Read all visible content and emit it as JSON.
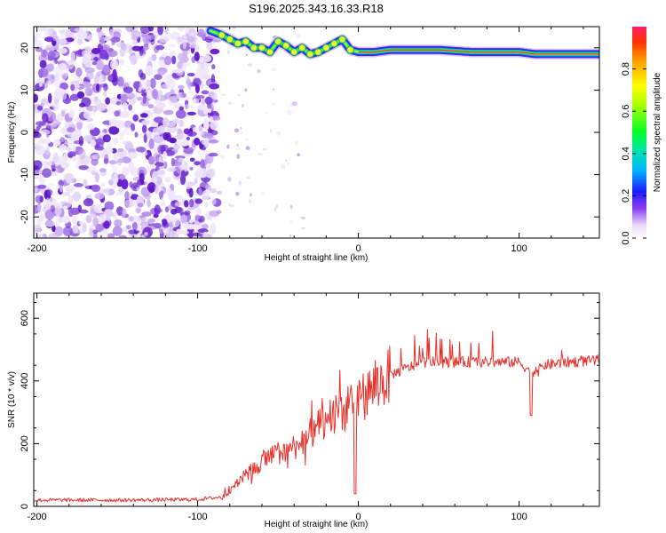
{
  "title": "S196.2025.343.16.33.R18",
  "colors": {
    "snr_line": "#e8302a",
    "ridge_core": "#e8302a",
    "noise_dark": "#6a1fd0",
    "noise_light": "#d9c4f4",
    "frame": "#000000",
    "background": "#ffffff"
  },
  "chart_data": [
    {
      "type": "heatmap",
      "name": "spectrogram",
      "title": "S196.2025.343.16.33.R18",
      "xlabel": "Height of straight line (km)",
      "ylabel": "Frequency (Hz)",
      "xlim": [
        -202,
        150
      ],
      "ylim": [
        -25,
        25
      ],
      "xticks": [
        -200,
        -100,
        0,
        100
      ],
      "yticks": [
        20,
        10,
        0,
        -10,
        -20
      ],
      "ridge": {
        "description_points_x": [
          -92,
          -85,
          -80,
          -75,
          -70,
          -65,
          -60,
          -55,
          -50,
          -45,
          -40,
          -35,
          -30,
          -25,
          -20,
          -15,
          -10,
          -5,
          0,
          10,
          20,
          30,
          50,
          70,
          90,
          100,
          110,
          120,
          130,
          150
        ],
        "description_points_y": [
          24,
          23,
          22,
          21,
          21.5,
          20,
          20,
          19,
          21.5,
          20.5,
          19,
          20,
          18.5,
          19,
          20,
          21,
          22,
          19.5,
          19,
          19,
          19.5,
          19.5,
          19.5,
          19,
          19,
          19,
          18.5,
          18.5,
          18.5,
          18.5
        ]
      },
      "noise_region_x": [
        -202,
        -88
      ],
      "colorbar": {
        "label": "Normalized spectral amplitude",
        "range": [
          0.0,
          1.0
        ],
        "ticks": [
          0.0,
          0.2,
          0.4,
          0.6,
          0.8
        ],
        "tick_labels": [
          "0.0",
          "0.2",
          "0.4",
          "0.6",
          "0.8"
        ]
      }
    },
    {
      "type": "line",
      "name": "snr",
      "xlabel": "Height of straight line (km)",
      "ylabel": "SNR (10 * v/v)",
      "xlim": [
        -202,
        150
      ],
      "ylim": [
        0,
        680
      ],
      "xticks": [
        -200,
        -100,
        0,
        100
      ],
      "yticks": [
        0,
        200,
        400,
        600
      ],
      "series": [
        {
          "name": "SNR",
          "envelope_x": [
            -202,
            -140,
            -100,
            -85,
            -80,
            -70,
            -60,
            -50,
            -40,
            -30,
            -20,
            -10,
            0,
            10,
            20,
            30,
            40,
            60,
            80,
            100,
            105,
            110,
            115,
            130,
            150
          ],
          "envelope_y": [
            20,
            20,
            22,
            30,
            60,
            100,
            140,
            170,
            190,
            230,
            270,
            300,
            340,
            380,
            420,
            440,
            460,
            460,
            460,
            460,
            440,
            420,
            450,
            460,
            465
          ]
        }
      ]
    }
  ]
}
